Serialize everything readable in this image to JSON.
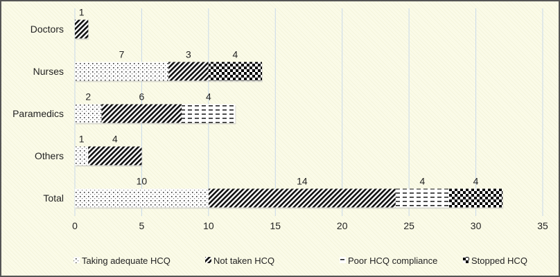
{
  "chart_data": {
    "type": "bar",
    "orientation": "horizontal",
    "stacked": true,
    "title": "",
    "xlabel": "",
    "ylabel": "",
    "categories": [
      "Doctors",
      "Nurses",
      "Paramedics",
      "Others",
      "Total"
    ],
    "series": [
      {
        "name": "Taking adequate HCQ",
        "pattern": "dots",
        "values": [
          0,
          7,
          2,
          1,
          10
        ]
      },
      {
        "name": "Not taken HCQ",
        "pattern": "diagonal",
        "values": [
          1,
          3,
          6,
          4,
          14
        ]
      },
      {
        "name": "Poor HCQ compliance",
        "pattern": "dashes",
        "values": [
          0,
          0,
          4,
          0,
          4
        ]
      },
      {
        "name": "Stopped HCQ",
        "pattern": "checker",
        "values": [
          0,
          4,
          0,
          0,
          4
        ]
      }
    ],
    "xlim": [
      0,
      35
    ],
    "xticks": [
      0,
      5,
      10,
      15,
      20,
      25,
      30,
      35
    ],
    "grid": true,
    "legend_position": "bottom",
    "colors": {
      "grid": "#c9d9ea",
      "ink": "#111111",
      "tick_text": "#2f5d8a"
    }
  }
}
